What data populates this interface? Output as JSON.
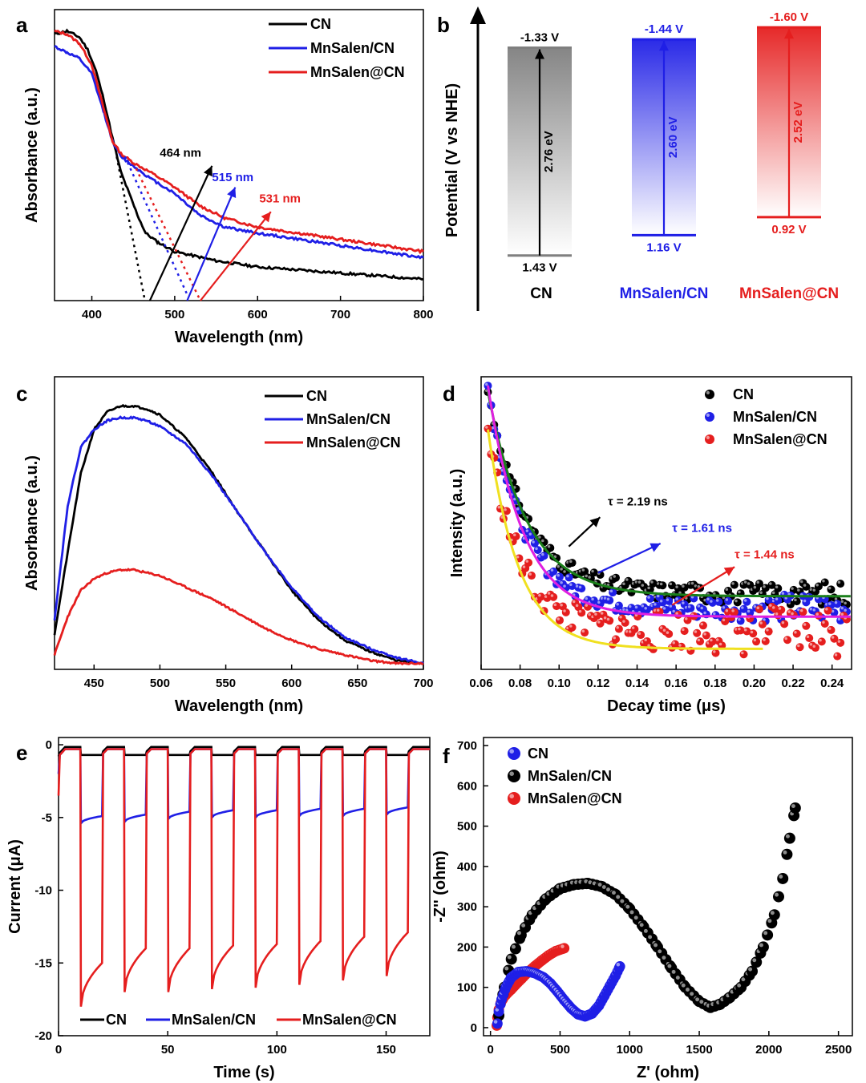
{
  "chart_data": [
    {
      "panel": "a",
      "type": "line",
      "xlabel": "Wavelength (nm)",
      "ylabel": "Absorbance (a.u.)",
      "xlim": [
        355,
        800
      ],
      "ylim": [
        0.05,
        1.0
      ],
      "xticks": [
        400,
        500,
        600,
        700,
        800
      ],
      "legend": "top-right",
      "series": [
        {
          "name": "CN",
          "color": "#000000",
          "x": [
            355,
            370,
            385,
            395,
            405,
            415,
            425,
            435,
            445,
            455,
            465,
            480,
            500,
            550,
            600,
            650,
            700,
            750,
            800
          ],
          "y": [
            0.92,
            0.93,
            0.91,
            0.87,
            0.8,
            0.7,
            0.58,
            0.47,
            0.4,
            0.33,
            0.27,
            0.24,
            0.21,
            0.18,
            0.16,
            0.15,
            0.14,
            0.13,
            0.12
          ]
        },
        {
          "name": "MnSalen/CN",
          "color": "#1f1fe6",
          "x": [
            355,
            370,
            385,
            400,
            415,
            425,
            435,
            450,
            470,
            500,
            530,
            560,
            600,
            650,
            700,
            750,
            800
          ],
          "y": [
            0.88,
            0.86,
            0.84,
            0.79,
            0.66,
            0.57,
            0.52,
            0.49,
            0.45,
            0.4,
            0.33,
            0.29,
            0.27,
            0.25,
            0.23,
            0.21,
            0.19
          ]
        },
        {
          "name": "MnSalen@CN",
          "color": "#e51e1e",
          "x": [
            355,
            370,
            385,
            400,
            415,
            425,
            435,
            450,
            470,
            500,
            530,
            560,
            600,
            650,
            700,
            750,
            800
          ],
          "y": [
            0.93,
            0.92,
            0.89,
            0.82,
            0.67,
            0.57,
            0.53,
            0.5,
            0.47,
            0.42,
            0.36,
            0.32,
            0.29,
            0.27,
            0.25,
            0.23,
            0.21
          ]
        }
      ],
      "tangents": [
        {
          "color": "#000000",
          "from": [
            430,
            0.52
          ],
          "to": [
            464,
            0.05
          ]
        },
        {
          "color": "#1f1fe6",
          "from": [
            440,
            0.52
          ],
          "to": [
            515,
            0.07
          ]
        },
        {
          "color": "#e51e1e",
          "from": [
            450,
            0.5
          ],
          "to": [
            531,
            0.05
          ]
        }
      ],
      "annotations": [
        {
          "text": "464 nm",
          "color": "#000000",
          "x": 482,
          "y": 0.52,
          "arrow_from": [
            470,
            0.05
          ],
          "arrow_to": [
            545,
            0.49
          ]
        },
        {
          "text": "515 nm",
          "color": "#1f1fe6",
          "x": 545,
          "y": 0.44,
          "arrow_from": [
            515,
            0.05
          ],
          "arrow_to": [
            573,
            0.42
          ]
        },
        {
          "text": "531 nm",
          "color": "#e51e1e",
          "x": 602,
          "y": 0.37,
          "arrow_from": [
            531,
            0.05
          ],
          "arrow_to": [
            616,
            0.34
          ]
        }
      ]
    },
    {
      "panel": "b",
      "type": "diagram",
      "ylabel": "Potential (V vs NHE)",
      "columns": [
        {
          "name": "CN",
          "color": "#7f7f7f",
          "label_color": "#000000",
          "cb": "-1.33 V",
          "cb_value": -1.33,
          "vb": "1.43 V",
          "vb_value": 1.43,
          "gap": "2.76 eV"
        },
        {
          "name": "MnSalen/CN",
          "color": "#1f1fe6",
          "label_color": "#1f1fe6",
          "cb": "-1.44 V",
          "cb_value": -1.44,
          "vb": "1.16 V",
          "vb_value": 1.16,
          "gap": "2.60 eV"
        },
        {
          "name": "MnSalen@CN",
          "color": "#e51e1e",
          "label_color": "#e51e1e",
          "cb": "-1.60 V",
          "cb_value": -1.6,
          "vb": "0.92 V",
          "vb_value": 0.92,
          "gap": "2.52 eV"
        }
      ]
    },
    {
      "panel": "c",
      "type": "line",
      "xlabel": "Wavelength (nm)",
      "ylabel": "Absorbance (a.u.)",
      "xlim": [
        420,
        700
      ],
      "ylim": [
        0,
        1.0
      ],
      "xticks": [
        450,
        500,
        550,
        600,
        650,
        700
      ],
      "legend": "top-right",
      "series": [
        {
          "name": "CN",
          "color": "#000000",
          "x": [
            420,
            430,
            440,
            450,
            460,
            470,
            480,
            490,
            500,
            520,
            540,
            560,
            580,
            600,
            620,
            640,
            660,
            680,
            700
          ],
          "y": [
            0.12,
            0.4,
            0.67,
            0.82,
            0.88,
            0.9,
            0.9,
            0.89,
            0.87,
            0.79,
            0.67,
            0.53,
            0.4,
            0.27,
            0.17,
            0.1,
            0.06,
            0.03,
            0.02
          ]
        },
        {
          "name": "MnSalen/CN",
          "color": "#1f1fe6",
          "x": [
            420,
            430,
            440,
            450,
            460,
            470,
            480,
            490,
            500,
            520,
            540,
            560,
            580,
            600,
            620,
            640,
            660,
            680,
            700
          ],
          "y": [
            0.17,
            0.56,
            0.76,
            0.82,
            0.85,
            0.86,
            0.86,
            0.85,
            0.83,
            0.77,
            0.66,
            0.53,
            0.4,
            0.28,
            0.18,
            0.11,
            0.07,
            0.04,
            0.02
          ]
        },
        {
          "name": "MnSalen@CN",
          "color": "#e51e1e",
          "x": [
            420,
            430,
            440,
            450,
            460,
            470,
            480,
            490,
            500,
            520,
            540,
            560,
            580,
            600,
            620,
            640,
            660,
            680,
            700
          ],
          "y": [
            0.05,
            0.18,
            0.27,
            0.31,
            0.33,
            0.34,
            0.34,
            0.33,
            0.32,
            0.28,
            0.24,
            0.19,
            0.14,
            0.1,
            0.07,
            0.05,
            0.03,
            0.02,
            0.02
          ]
        }
      ]
    },
    {
      "panel": "d",
      "type": "scatter",
      "xlabel": "Decay time (μs)",
      "ylabel": "Intensity (a.u.)",
      "xlim": [
        0.06,
        0.25
      ],
      "ylim": [
        0,
        1.0
      ],
      "xticks": [
        "0.06",
        "0.08",
        "0.10",
        "0.12",
        "0.14",
        "0.16",
        "0.18",
        "0.20",
        "0.22",
        "0.24"
      ],
      "legend": "top-right",
      "series": [
        {
          "name": "CN",
          "color": "#000000",
          "start": 0.95,
          "end": 0.26,
          "k": 0.02,
          "noise": 0.02
        },
        {
          "name": "MnSalen/CN",
          "color": "#1f1fe6",
          "start": 0.97,
          "end": 0.21,
          "k": 0.018,
          "noise": 0.025
        },
        {
          "name": "MnSalen@CN",
          "color": "#e51e1e",
          "start": 0.82,
          "end": 0.13,
          "k": 0.016,
          "noise": 0.045
        }
      ],
      "fits": [
        {
          "color": "#1a7f1a",
          "x0": 0.0635,
          "x1": 0.25,
          "start": 0.95,
          "end": 0.25,
          "k": 0.02
        },
        {
          "color": "#e020e0",
          "x0": 0.0635,
          "x1": 0.25,
          "start": 0.97,
          "end": 0.18,
          "k": 0.018
        },
        {
          "color": "#f0e020",
          "x0": 0.0635,
          "x1": 0.205,
          "start": 0.82,
          "end": 0.07,
          "k": 0.016
        }
      ],
      "annotations": [
        {
          "text": "τ = 2.19 ns",
          "color": "#000000",
          "x": 0.125,
          "y": 0.56,
          "arrow_from": [
            0.105,
            0.42
          ],
          "arrow_to": [
            0.121,
            0.52
          ]
        },
        {
          "text": "τ = 1.61 ns",
          "color": "#1f1fe6",
          "x": 0.158,
          "y": 0.47,
          "arrow_from": [
            0.12,
            0.33
          ],
          "arrow_to": [
            0.152,
            0.43
          ]
        },
        {
          "text": "τ = 1.44 ns",
          "color": "#e51e1e",
          "x": 0.19,
          "y": 0.38,
          "arrow_from": [
            0.158,
            0.22
          ],
          "arrow_to": [
            0.19,
            0.35
          ]
        }
      ]
    },
    {
      "panel": "e",
      "type": "line",
      "xlabel": "Time (s)",
      "ylabel": "Current (μA)",
      "xlim": [
        0,
        170
      ],
      "ylim": [
        -20,
        0.5
      ],
      "xticks": [
        0,
        50,
        100,
        150
      ],
      "yticks": [
        0,
        -5,
        -10,
        -15,
        -20
      ],
      "legend": "bottom",
      "light_on_times": [
        10,
        30,
        50,
        70,
        90,
        110,
        130,
        150
      ],
      "series": [
        {
          "name": "CN",
          "color": "#000000",
          "on_level": -0.7,
          "off_level": -0.15
        },
        {
          "name": "MnSalen/CN",
          "color": "#1f1fe6",
          "on_level": [
            -5.4,
            -5.3,
            -5.1,
            -5.0,
            -5.0,
            -4.9,
            -4.9,
            -4.8
          ],
          "off_level": -0.3
        },
        {
          "name": "MnSalen@CN",
          "color": "#e51e1e",
          "on_level": [
            -18.0,
            -17.0,
            -17.0,
            -16.8,
            -16.7,
            -16.5,
            -16.2,
            -15.9
          ],
          "off_level": -0.3
        }
      ]
    },
    {
      "panel": "f",
      "type": "scatter",
      "xlabel": "Z' (ohm)",
      "ylabel": "-Z'' (ohm)",
      "xlim": [
        -50,
        2600
      ],
      "ylim": [
        -20,
        720
      ],
      "xticks": [
        0,
        500,
        1000,
        1500,
        2000,
        2500
      ],
      "yticks": [
        0,
        100,
        200,
        300,
        400,
        500,
        600,
        700
      ],
      "legend": "top-left",
      "series": [
        {
          "name": "CN",
          "color": "#1f1fe6",
          "x": [
            50,
            60,
            80,
            110,
            150,
            200,
            260,
            320,
            380,
            430,
            480,
            530,
            580,
            630,
            680,
            730,
            780,
            820,
            860,
            900,
            930
          ],
          "y": [
            10,
            40,
            70,
            100,
            125,
            138,
            140,
            135,
            125,
            110,
            90,
            68,
            48,
            33,
            28,
            35,
            55,
            80,
            105,
            130,
            152
          ]
        },
        {
          "name": "MnSalen/CN",
          "color": "#000000",
          "x": [
            60,
            100,
            150,
            220,
            300,
            400,
            500,
            600,
            700,
            800,
            900,
            1000,
            1100,
            1200,
            1300,
            1400,
            1500,
            1580,
            1650,
            1720,
            1800,
            1880,
            1960,
            2040,
            2100,
            2150,
            2190
          ],
          "y": [
            30,
            100,
            170,
            230,
            280,
            320,
            345,
            355,
            358,
            350,
            330,
            295,
            250,
            200,
            148,
            100,
            65,
            50,
            58,
            75,
            100,
            140,
            200,
            280,
            370,
            470,
            545
          ]
        },
        {
          "name": "MnSalen@CN",
          "color": "#e51e1e",
          "x": [
            45,
            50,
            60,
            75,
            95,
            120,
            150,
            185,
            225,
            270,
            320,
            370,
            420,
            470,
            530
          ],
          "y": [
            5,
            25,
            45,
            62,
            75,
            85,
            95,
            108,
            122,
            138,
            153,
            167,
            180,
            190,
            197
          ]
        }
      ]
    }
  ]
}
